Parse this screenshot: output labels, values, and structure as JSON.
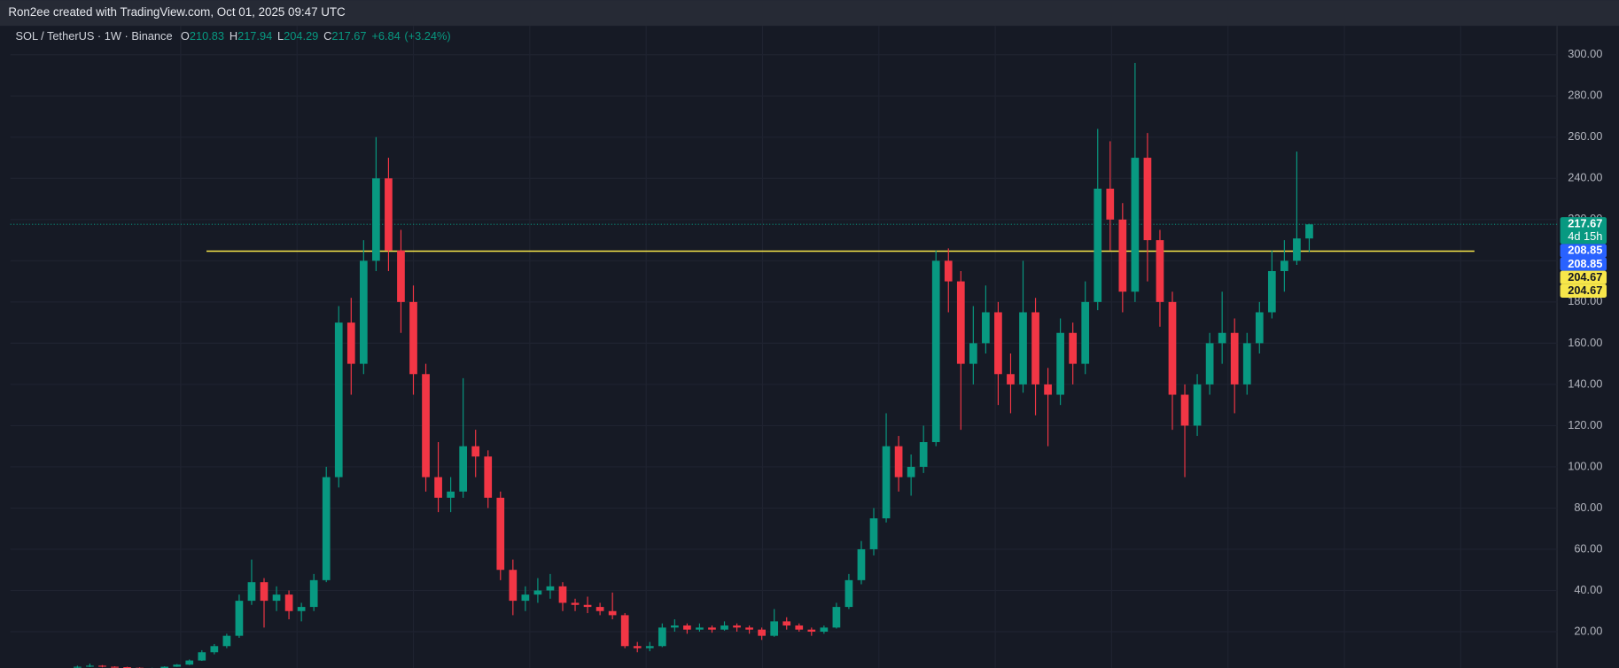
{
  "header": {
    "text": "Ron2ee created with TradingView.com, Oct 01, 2025 09:47 UTC"
  },
  "chart_data": {
    "type": "candlestick",
    "title": "SOL / TetherUS · 1W · Binance",
    "ohlc_legend": [
      {
        "label": "O",
        "value": 210.83
      },
      {
        "label": "H",
        "value": 217.94
      },
      {
        "label": "L",
        "value": 204.29
      },
      {
        "label": "C",
        "value": 217.67
      }
    ],
    "change": {
      "value": 6.84,
      "label": "+6.84"
    },
    "change_pct": {
      "value": 3.24,
      "label": "(+3.24%)"
    },
    "up_color": "#089981",
    "down_color": "#f23645",
    "ylim": [
      2.4,
      314
    ],
    "yticks": [
      {
        "value": 20,
        "label": "20.00"
      },
      {
        "value": 40,
        "label": "40.00"
      },
      {
        "value": 60,
        "label": "60.00"
      },
      {
        "value": 80,
        "label": "80.00"
      },
      {
        "value": 100,
        "label": "100.00"
      },
      {
        "value": 120,
        "label": "120.00"
      },
      {
        "value": 140,
        "label": "140.00"
      },
      {
        "value": 160,
        "label": "160.00"
      },
      {
        "value": 180,
        "label": "180.00"
      },
      {
        "value": 200,
        "label": "200.00"
      },
      {
        "value": 220,
        "label": "220.00"
      },
      {
        "value": 240,
        "label": "240.00"
      },
      {
        "value": 260,
        "label": "260.00"
      },
      {
        "value": 280,
        "label": "280.00"
      },
      {
        "value": 300,
        "label": "300.00"
      }
    ],
    "grid": true,
    "hlines": [
      {
        "value": 204.67,
        "color": "#f7e64a"
      }
    ],
    "price_tags": [
      {
        "value": 217.67,
        "sub": "4d 15h",
        "color": "#089981",
        "text_color": "#ffffff"
      },
      {
        "value": 208.85,
        "color": "#2962ff",
        "text_color": "#ffffff"
      },
      {
        "value": 208.85,
        "color": "#2962ff",
        "text_color": "#ffffff"
      },
      {
        "value": 204.67,
        "color": "#f7e64a",
        "text_color": "#131722"
      },
      {
        "value": 204.67,
        "color": "#f7e64a",
        "text_color": "#131722"
      }
    ],
    "candles": [
      [
        2.5,
        3.5,
        2.2,
        3
      ],
      [
        3,
        4.5,
        2.8,
        3.5
      ],
      [
        3.5,
        3.8,
        2.7,
        3
      ],
      [
        3,
        3.2,
        2.5,
        2.8
      ],
      [
        2.8,
        3,
        2.2,
        2.5
      ],
      [
        2.5,
        2.7,
        1.8,
        2
      ],
      [
        2,
        2.5,
        1.8,
        2.2
      ],
      [
        2.2,
        3.2,
        2.1,
        3
      ],
      [
        3,
        4.3,
        2.9,
        4
      ],
      [
        4,
        6.5,
        3.8,
        6
      ],
      [
        6,
        11,
        5.8,
        10
      ],
      [
        10,
        14,
        9,
        13
      ],
      [
        13,
        19,
        12,
        18
      ],
      [
        18,
        38,
        17,
        35
      ],
      [
        35,
        55,
        33,
        44
      ],
      [
        44,
        46,
        22,
        35
      ],
      [
        35,
        42,
        30,
        38
      ],
      [
        38,
        40,
        26,
        30
      ],
      [
        30,
        34,
        25,
        32
      ],
      [
        32,
        48,
        30,
        45
      ],
      [
        45,
        100,
        44,
        95
      ],
      [
        95,
        178,
        90,
        170
      ],
      [
        170,
        182,
        135,
        150
      ],
      [
        150,
        210,
        145,
        200
      ],
      [
        200,
        260,
        195,
        240
      ],
      [
        240,
        250,
        195,
        205
      ],
      [
        205,
        215,
        165,
        180
      ],
      [
        180,
        188,
        135,
        145
      ],
      [
        145,
        150,
        88,
        95
      ],
      [
        95,
        112,
        78,
        85
      ],
      [
        85,
        95,
        78,
        88
      ],
      [
        88,
        143,
        85,
        110
      ],
      [
        110,
        118,
        95,
        105
      ],
      [
        105,
        108,
        80,
        85
      ],
      [
        85,
        88,
        45,
        50
      ],
      [
        50,
        55,
        28,
        35
      ],
      [
        35,
        42,
        30,
        38
      ],
      [
        38,
        46,
        34,
        40
      ],
      [
        40,
        48,
        36,
        42
      ],
      [
        42,
        44,
        30,
        34
      ],
      [
        34,
        36,
        30,
        33
      ],
      [
        33,
        37,
        29,
        32
      ],
      [
        32,
        34,
        28,
        30
      ],
      [
        30,
        39,
        26,
        28
      ],
      [
        28,
        29,
        12,
        13
      ],
      [
        13,
        15,
        10,
        12
      ],
      [
        12,
        15,
        10.5,
        13
      ],
      [
        13,
        24,
        12.5,
        22
      ],
      [
        22,
        26,
        20,
        23
      ],
      [
        23,
        24,
        19,
        21
      ],
      [
        21,
        24,
        20,
        22
      ],
      [
        22,
        23,
        19.5,
        21
      ],
      [
        21,
        25,
        20.5,
        23
      ],
      [
        23,
        24,
        20,
        22
      ],
      [
        22,
        23,
        19,
        21
      ],
      [
        21,
        22,
        16,
        18
      ],
      [
        18,
        31,
        17.5,
        25
      ],
      [
        25,
        27,
        21,
        23
      ],
      [
        23,
        24,
        20,
        21
      ],
      [
        21,
        22,
        18,
        20
      ],
      [
        20,
        23,
        19,
        22
      ],
      [
        22,
        34,
        21.5,
        32
      ],
      [
        32,
        48,
        31,
        45
      ],
      [
        45,
        64,
        43,
        60
      ],
      [
        60,
        80,
        57,
        75
      ],
      [
        75,
        126,
        73,
        110
      ],
      [
        110,
        115,
        88,
        95
      ],
      [
        95,
        106,
        86,
        100
      ],
      [
        100,
        120,
        97,
        112
      ],
      [
        112,
        205,
        110,
        200
      ],
      [
        200,
        206,
        175,
        190
      ],
      [
        190,
        195,
        118,
        150
      ],
      [
        150,
        178,
        140,
        160
      ],
      [
        160,
        188,
        155,
        175
      ],
      [
        175,
        180,
        130,
        145
      ],
      [
        145,
        155,
        126,
        140
      ],
      [
        140,
        200,
        136,
        175
      ],
      [
        175,
        182,
        125,
        140
      ],
      [
        140,
        148,
        110,
        135
      ],
      [
        135,
        172,
        130,
        165
      ],
      [
        165,
        170,
        140,
        150
      ],
      [
        150,
        190,
        145,
        180
      ],
      [
        180,
        264,
        176,
        235
      ],
      [
        235,
        258,
        205,
        220
      ],
      [
        220,
        228,
        175,
        185
      ],
      [
        185,
        296,
        180,
        250
      ],
      [
        250,
        262,
        190,
        210
      ],
      [
        210,
        215,
        168,
        180
      ],
      [
        180,
        185,
        118,
        135
      ],
      [
        135,
        140,
        95,
        120
      ],
      [
        120,
        145,
        115,
        140
      ],
      [
        140,
        165,
        135,
        160
      ],
      [
        160,
        185,
        150,
        165
      ],
      [
        165,
        172,
        126,
        140
      ],
      [
        140,
        165,
        135,
        160
      ],
      [
        160,
        180,
        155,
        175
      ],
      [
        175,
        205,
        172,
        195
      ],
      [
        195,
        210,
        185,
        200
      ],
      [
        200,
        253,
        198,
        210.83
      ],
      [
        210.83,
        217.94,
        204.29,
        217.67
      ]
    ]
  }
}
